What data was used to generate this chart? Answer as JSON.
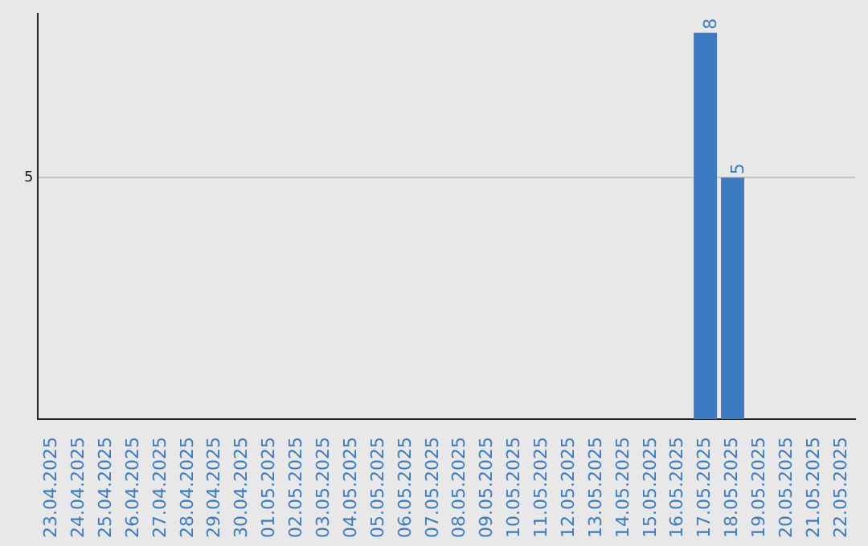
{
  "chart_data": {
    "type": "bar",
    "categories": [
      "23.04.2025",
      "24.04.2025",
      "25.04.2025",
      "26.04.2025",
      "27.04.2025",
      "28.04.2025",
      "29.04.2025",
      "30.04.2025",
      "01.05.2025",
      "02.05.2025",
      "03.05.2025",
      "04.05.2025",
      "05.05.2025",
      "06.05.2025",
      "07.05.2025",
      "08.05.2025",
      "09.05.2025",
      "10.05.2025",
      "11.05.2025",
      "12.05.2025",
      "13.05.2025",
      "14.05.2025",
      "15.05.2025",
      "16.05.2025",
      "17.05.2025",
      "18.05.2025",
      "19.05.2025",
      "20.05.2025",
      "21.05.2025",
      "22.05.2025"
    ],
    "values": [
      null,
      null,
      null,
      null,
      null,
      null,
      null,
      null,
      null,
      null,
      null,
      null,
      null,
      null,
      null,
      null,
      null,
      null,
      null,
      null,
      null,
      null,
      null,
      null,
      8,
      5,
      null,
      null,
      null,
      null
    ],
    "value_labels": [
      null,
      null,
      null,
      null,
      null,
      null,
      null,
      null,
      null,
      null,
      null,
      null,
      null,
      null,
      null,
      null,
      null,
      null,
      null,
      null,
      null,
      null,
      null,
      null,
      "8",
      "5",
      null,
      null,
      null,
      null
    ],
    "color": "#3a7bc4",
    "ylim": [
      0,
      8.4
    ],
    "yticks": [
      5
    ],
    "grid": "y",
    "legend": false
  }
}
